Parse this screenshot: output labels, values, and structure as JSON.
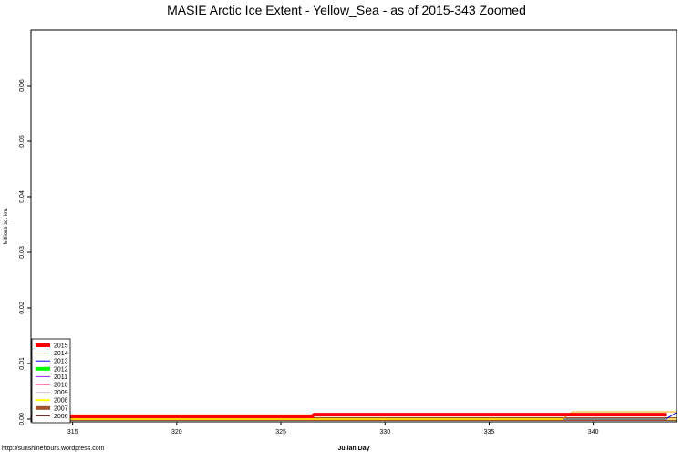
{
  "chart_data": {
    "type": "line",
    "title": "MASIE Arctic Ice Extent - Yellow_Sea - as of 2015-343 Zoomed",
    "xlabel": "Julian Day",
    "ylabel": "Millions sq. km.",
    "caption": "http://sunshinehours.wordpress.com",
    "xlim": [
      313,
      344
    ],
    "ylim": [
      -0.0005,
      0.07
    ],
    "x_ticks": [
      315,
      320,
      325,
      330,
      335,
      340
    ],
    "y_ticks": [
      0.0,
      0.01,
      0.02,
      0.03,
      0.04,
      0.05,
      0.06
    ],
    "x_tick_labels": [
      "315",
      "320",
      "325",
      "330",
      "335",
      "340"
    ],
    "y_tick_labels": [
      "0.00",
      "0.01",
      "0.02",
      "0.03",
      "0.04",
      "0.05",
      "0.06"
    ],
    "grid": false,
    "legend_position": "bottom-left",
    "series": [
      {
        "name": "2015",
        "color": "#ff0000",
        "width": 4,
        "x": [
          313,
          326.5,
          326.6,
          343.5
        ],
        "y": [
          0.0005,
          0.0005,
          0.0008,
          0.0008
        ]
      },
      {
        "name": "2014",
        "color": "#ffa500",
        "width": 1,
        "x": [
          313,
          338.5,
          339,
          344
        ],
        "y": [
          0.0,
          0.0,
          0.0013,
          0.0013
        ]
      },
      {
        "name": "2013",
        "color": "#0000ff",
        "width": 1,
        "x": [
          313,
          343.5,
          344
        ],
        "y": [
          0.0,
          0.0,
          0.0012
        ]
      },
      {
        "name": "2012",
        "color": "#00ff00",
        "width": 4,
        "x": [
          313,
          344
        ],
        "y": [
          0.0,
          0.0
        ]
      },
      {
        "name": "2011",
        "color": "#a020f0",
        "width": 1,
        "x": [
          313,
          344
        ],
        "y": [
          0.0,
          0.0
        ]
      },
      {
        "name": "2010",
        "color": "#ff0066",
        "width": 1,
        "x": [
          313,
          344
        ],
        "y": [
          0.0,
          0.0
        ]
      },
      {
        "name": "2009",
        "color": "#d8bfd8",
        "width": 1,
        "x": [
          313,
          344
        ],
        "y": [
          0.0,
          0.0
        ]
      },
      {
        "name": "2008",
        "color": "#ffff00",
        "width": 2,
        "x": [
          313,
          344
        ],
        "y": [
          0.0,
          0.0
        ]
      },
      {
        "name": "2007",
        "color": "#a0522d",
        "width": 4,
        "x": [
          313,
          344
        ],
        "y": [
          0.0,
          0.0
        ]
      },
      {
        "name": "2006",
        "color": "#5c1a1a",
        "width": 1,
        "x": [
          313,
          344
        ],
        "y": [
          0.0,
          0.0
        ]
      }
    ]
  }
}
